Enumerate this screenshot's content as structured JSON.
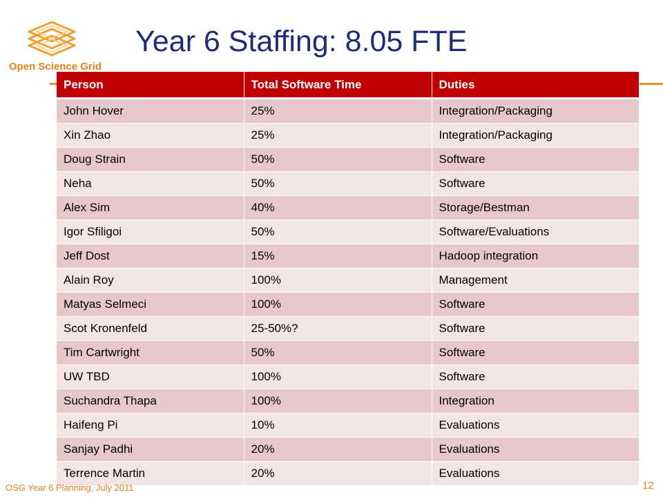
{
  "slide": {
    "logo_text": "Open Science Grid",
    "title": "Year 6 Staffing: 8.05 FTE",
    "footer": "OSG Year 6 Planning, July 2011",
    "page_number": "12",
    "accent_color": "#c00000",
    "brand_color": "#e8801a"
  },
  "table": {
    "headers": [
      "Person",
      "Total Software Time",
      "Duties"
    ],
    "rows": [
      [
        "John Hover",
        "25%",
        "Integration/Packaging"
      ],
      [
        "Xin Zhao",
        "25%",
        "Integration/Packaging"
      ],
      [
        "Doug Strain",
        "50%",
        "Software"
      ],
      [
        "Neha",
        "50%",
        "Software"
      ],
      [
        "Alex Sim",
        "40%",
        "Storage/Bestman"
      ],
      [
        "Igor Sfiligoi",
        "50%",
        "Software/Evaluations"
      ],
      [
        "Jeff Dost",
        "15%",
        "Hadoop integration"
      ],
      [
        "Alain Roy",
        "100%",
        "Management"
      ],
      [
        "Matyas Selmeci",
        "100%",
        "Software"
      ],
      [
        "Scot Kronenfeld",
        "25-50%?",
        "Software"
      ],
      [
        "Tim Cartwright",
        "50%",
        "Software"
      ],
      [
        "UW TBD",
        "100%",
        "Software"
      ],
      [
        "Suchandra Thapa",
        "100%",
        "Integration"
      ],
      [
        "Haifeng Pi",
        "10%",
        "Evaluations"
      ],
      [
        "Sanjay Padhi",
        "20%",
        "Evaluations"
      ],
      [
        "Terrence Martin",
        "20%",
        "Evaluations"
      ]
    ]
  }
}
